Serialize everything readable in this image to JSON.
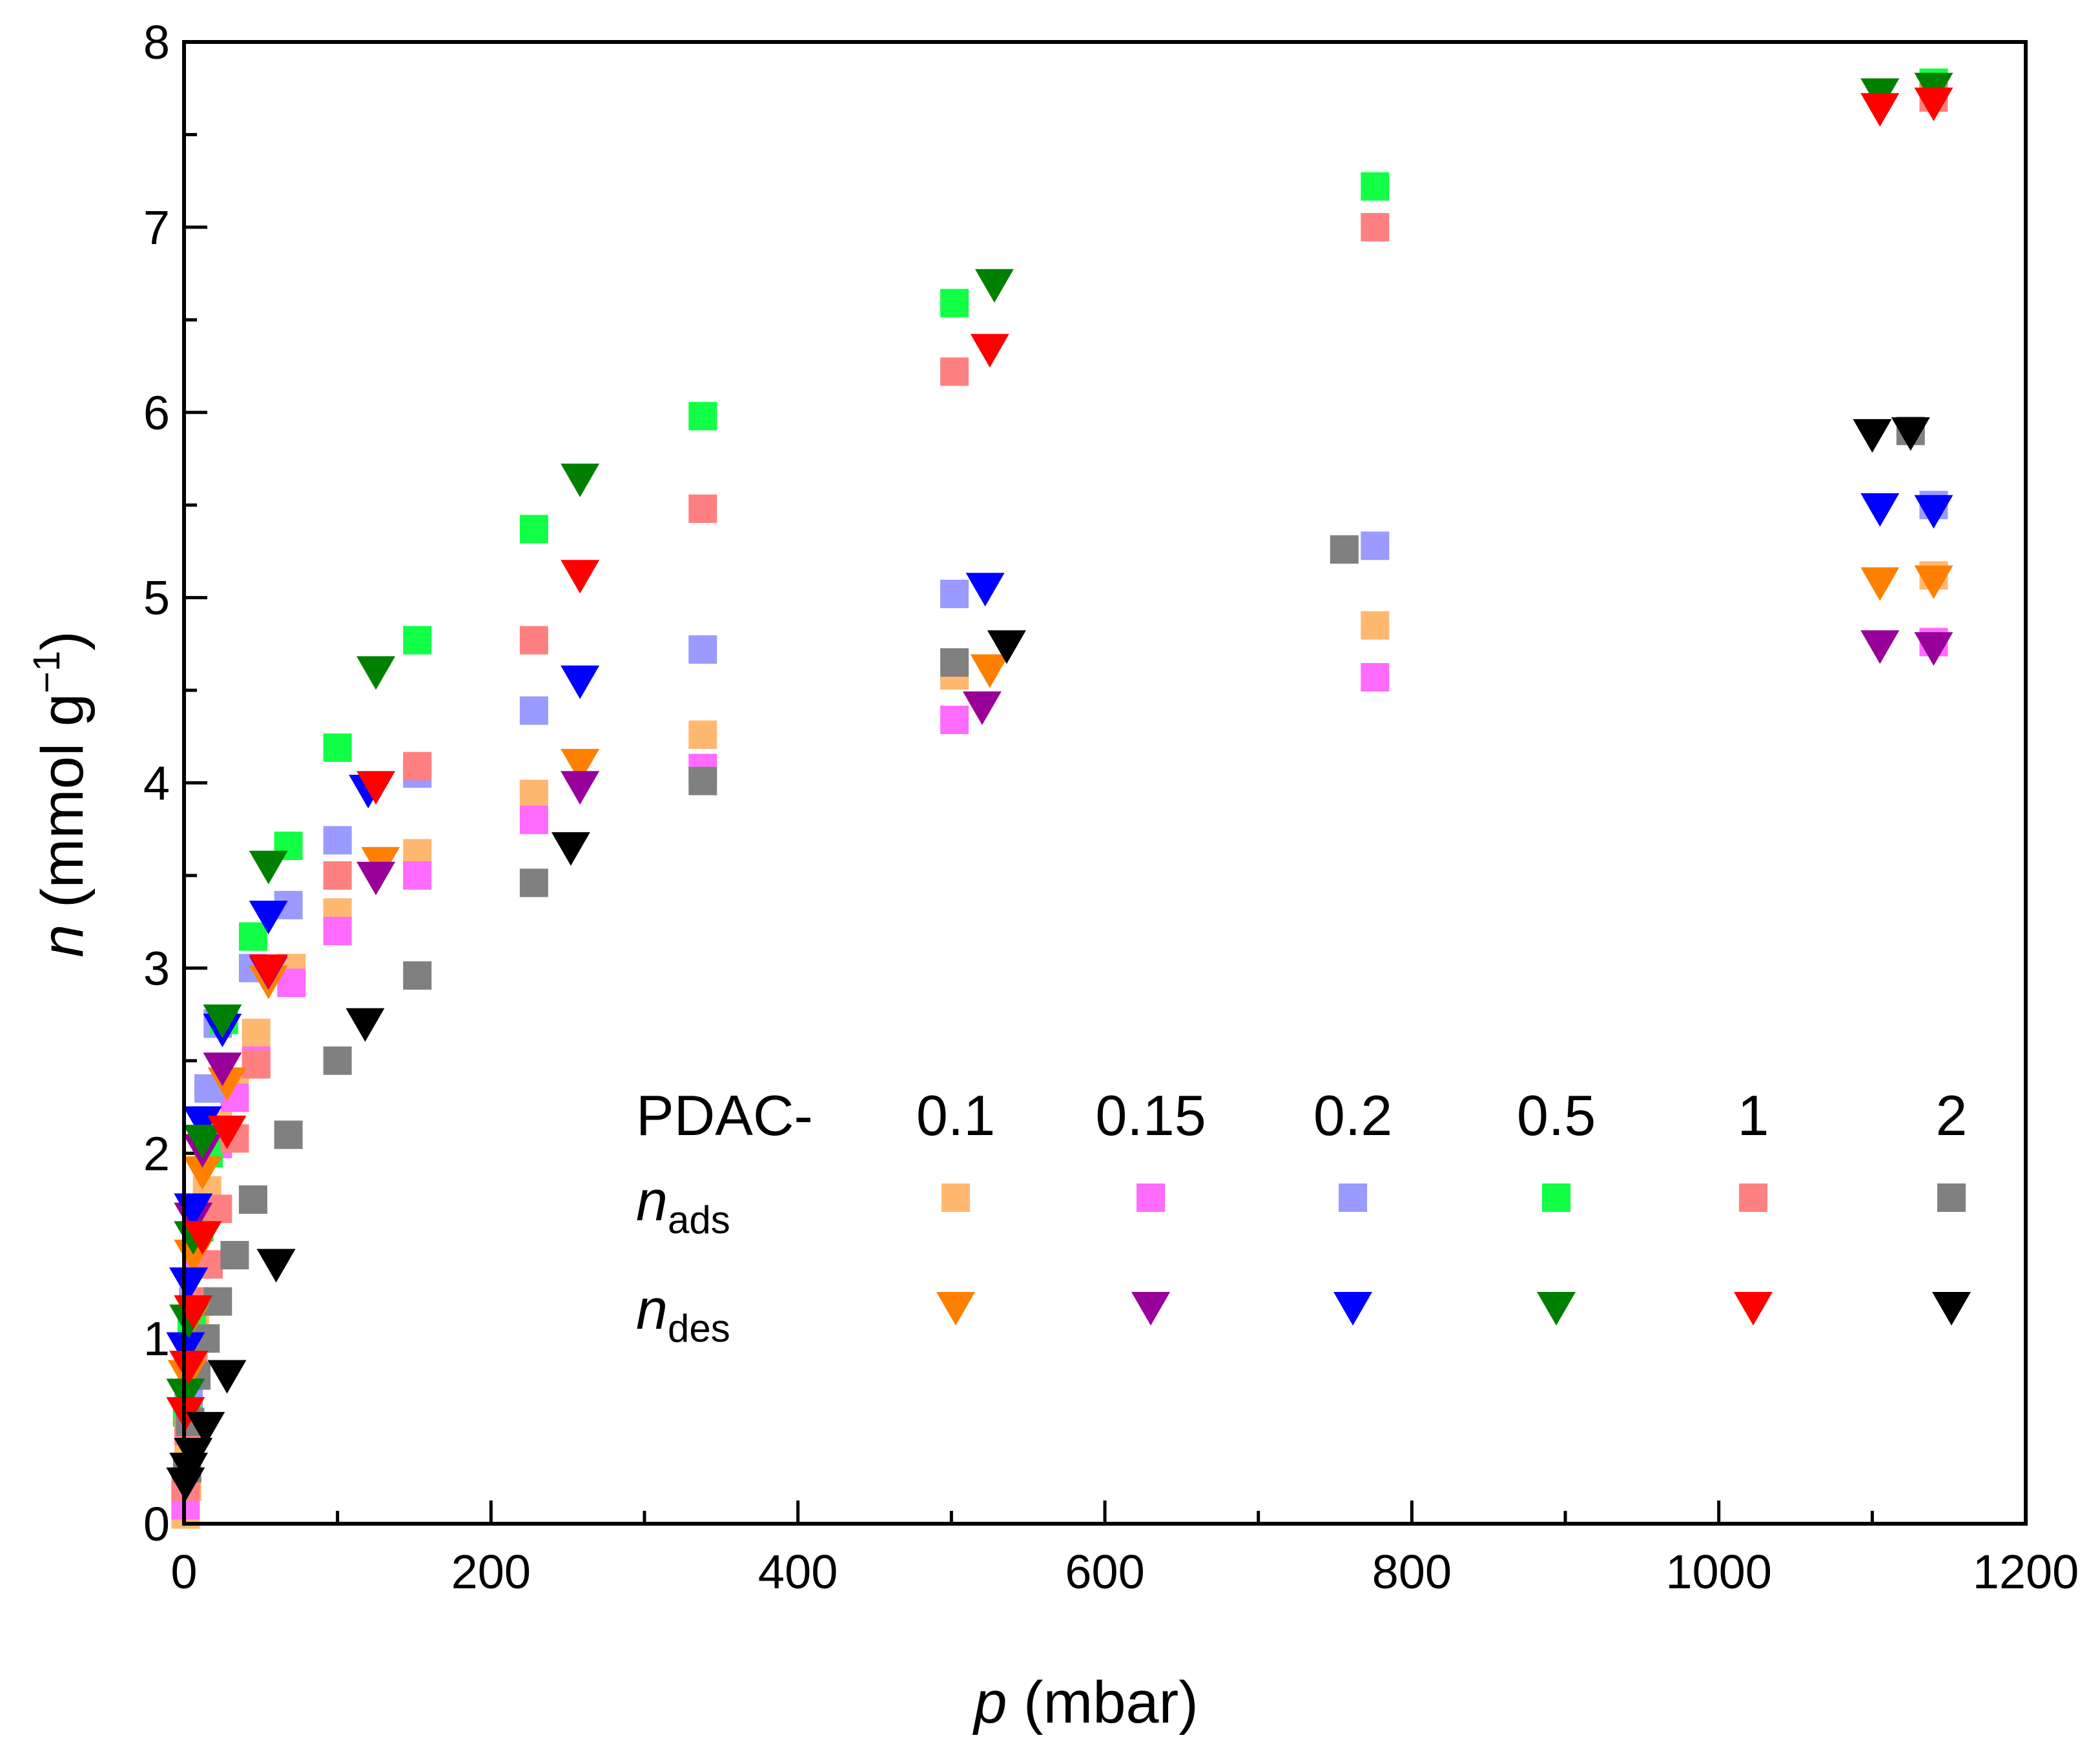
{
  "chart_data": {
    "type": "scatter",
    "x_axis": {
      "label_italic": "p",
      "label_rest": " (mbar)",
      "range": [
        0,
        1200
      ],
      "major_ticks": [
        0,
        200,
        400,
        600,
        800,
        1000,
        1200
      ],
      "tick_labels": [
        "0",
        "200",
        "400",
        "600",
        "800",
        "1000",
        "1200"
      ],
      "minor_ticks": [
        100,
        300,
        500,
        700,
        900,
        1100
      ]
    },
    "y_axis": {
      "label_italic": "n",
      "label_rest": " (mmol g",
      "label_sup": "−1",
      "label_close": ")",
      "range": [
        0,
        8
      ],
      "major_ticks": [
        0,
        1,
        2,
        3,
        4,
        5,
        6,
        7,
        8
      ],
      "tick_labels": [
        "0",
        "1",
        "2",
        "3",
        "4",
        "5",
        "6",
        "7",
        "8"
      ],
      "minor_ticks": [
        0.5,
        1.5,
        2.5,
        3.5,
        4.5,
        5.5,
        6.5,
        7.5
      ]
    },
    "legend": {
      "prefix": "PDAC-",
      "row_ads": {
        "main": "n",
        "sub": "ads"
      },
      "row_des": {
        "main": "n",
        "sub": "des"
      },
      "placement": "bottom-right"
    },
    "series": [
      {
        "name": "0.1",
        "ads_color": "#ffb870",
        "des_color": "#ff8000",
        "ads": [
          [
            1,
            0.05
          ],
          [
            2,
            0.2
          ],
          [
            3,
            0.4
          ],
          [
            5,
            0.8
          ],
          [
            7,
            1.1
          ],
          [
            10,
            1.4
          ],
          [
            15,
            1.8
          ],
          [
            22,
            2.15
          ],
          [
            33,
            2.35
          ],
          [
            47,
            2.65
          ],
          [
            70,
            3.0
          ],
          [
            100,
            3.3
          ],
          [
            152,
            3.62
          ],
          [
            228,
            3.94
          ],
          [
            338,
            4.26
          ],
          [
            502,
            4.58
          ],
          [
            776,
            4.85
          ],
          [
            1140,
            5.12
          ]
        ],
        "des": [
          [
            1140,
            5.09
          ],
          [
            1105,
            5.08
          ],
          [
            525,
            4.61
          ],
          [
            258,
            4.1
          ],
          [
            128,
            3.57
          ],
          [
            55,
            2.93
          ],
          [
            28,
            2.38
          ],
          [
            12,
            1.9
          ],
          [
            6,
            1.45
          ],
          [
            4,
            1.1
          ],
          [
            2,
            0.8
          ]
        ]
      },
      {
        "name": "0.15",
        "ads_color": "#ff6aff",
        "des_color": "#990099",
        "ads": [
          [
            1,
            0.1
          ],
          [
            3,
            0.5
          ],
          [
            6,
            0.9
          ],
          [
            10,
            1.4
          ],
          [
            16,
            1.7
          ],
          [
            22,
            2.05
          ],
          [
            33,
            2.3
          ],
          [
            47,
            2.5
          ],
          [
            70,
            2.92
          ],
          [
            100,
            3.2
          ],
          [
            152,
            3.5
          ],
          [
            228,
            3.8
          ],
          [
            338,
            4.08
          ],
          [
            502,
            4.34
          ],
          [
            776,
            4.57
          ],
          [
            1140,
            4.76
          ]
        ],
        "des": [
          [
            1140,
            4.73
          ],
          [
            1105,
            4.74
          ],
          [
            520,
            4.41
          ],
          [
            258,
            3.98
          ],
          [
            125,
            3.49
          ],
          [
            55,
            2.98
          ],
          [
            25,
            2.46
          ],
          [
            12,
            2.02
          ],
          [
            6,
            1.65
          ],
          [
            3,
            1.3
          ]
        ]
      },
      {
        "name": "0.2",
        "ads_color": "#9a9aff",
        "des_color": "#0000ff",
        "ads": [
          [
            1,
            0.2
          ],
          [
            3,
            0.7
          ],
          [
            6,
            1.2
          ],
          [
            10,
            1.7
          ],
          [
            16,
            2.35
          ],
          [
            22,
            2.7
          ],
          [
            45,
            3.0
          ],
          [
            68,
            3.34
          ],
          [
            100,
            3.69
          ],
          [
            152,
            4.05
          ],
          [
            228,
            4.39
          ],
          [
            338,
            4.72
          ],
          [
            502,
            5.02
          ],
          [
            776,
            5.28
          ],
          [
            1140,
            5.5
          ]
        ],
        "des": [
          [
            1140,
            5.47
          ],
          [
            1105,
            5.48
          ],
          [
            522,
            5.05
          ],
          [
            258,
            4.55
          ],
          [
            120,
            3.96
          ],
          [
            55,
            3.28
          ],
          [
            25,
            2.67
          ],
          [
            12,
            2.17
          ],
          [
            6,
            1.7
          ],
          [
            3,
            1.3
          ],
          [
            1,
            0.95
          ]
        ]
      },
      {
        "name": "0.5",
        "ads_color": "#11ff44",
        "des_color": "#008000",
        "ads": [
          [
            2,
            0.6
          ],
          [
            5,
            1.1
          ],
          [
            10,
            1.6
          ],
          [
            16,
            2.0
          ],
          [
            26,
            2.72
          ],
          [
            45,
            3.17
          ],
          [
            68,
            3.66
          ],
          [
            100,
            4.19
          ],
          [
            152,
            4.77
          ],
          [
            228,
            5.37
          ],
          [
            338,
            5.98
          ],
          [
            502,
            6.59
          ],
          [
            776,
            7.22
          ],
          [
            1140,
            7.78
          ]
        ],
        "des": [
          [
            1140,
            7.75
          ],
          [
            1105,
            7.72
          ],
          [
            528,
            6.69
          ],
          [
            258,
            5.64
          ],
          [
            125,
            4.6
          ],
          [
            55,
            3.55
          ],
          [
            25,
            2.72
          ],
          [
            12,
            2.07
          ],
          [
            6,
            1.55
          ],
          [
            3,
            1.1
          ],
          [
            1,
            0.7
          ]
        ]
      },
      {
        "name": "1",
        "ads_color": "#ff8080",
        "des_color": "#ff0000",
        "ads": [
          [
            1,
            0.2
          ],
          [
            3,
            0.5
          ],
          [
            6,
            0.9
          ],
          [
            10,
            1.2
          ],
          [
            16,
            1.4
          ],
          [
            22,
            1.7
          ],
          [
            33,
            2.08
          ],
          [
            47,
            2.48
          ],
          [
            100,
            3.5
          ],
          [
            152,
            4.09
          ],
          [
            228,
            4.77
          ],
          [
            338,
            5.48
          ],
          [
            502,
            6.22
          ],
          [
            776,
            7.0
          ],
          [
            1140,
            7.7
          ]
        ],
        "des": [
          [
            1140,
            7.67
          ],
          [
            1105,
            7.64
          ],
          [
            525,
            6.34
          ],
          [
            258,
            5.12
          ],
          [
            125,
            3.98
          ],
          [
            55,
            2.99
          ],
          [
            28,
            2.12
          ],
          [
            12,
            1.55
          ],
          [
            6,
            1.15
          ],
          [
            3,
            0.85
          ],
          [
            1,
            0.6
          ]
        ]
      },
      {
        "name": "2",
        "ads_color": "#808080",
        "des_color": "#000000",
        "ads": [
          [
            2,
            0.3
          ],
          [
            4,
            0.55
          ],
          [
            8,
            0.8
          ],
          [
            14,
            1.0
          ],
          [
            22,
            1.2
          ],
          [
            33,
            1.45
          ],
          [
            45,
            1.75
          ],
          [
            68,
            2.1
          ],
          [
            100,
            2.5
          ],
          [
            152,
            2.96
          ],
          [
            228,
            3.46
          ],
          [
            338,
            4.01
          ],
          [
            502,
            4.65
          ],
          [
            756,
            5.26
          ],
          [
            1125,
            5.9
          ]
        ],
        "des": [
          [
            1125,
            5.89
          ],
          [
            1100,
            5.88
          ],
          [
            536,
            4.74
          ],
          [
            252,
            3.65
          ],
          [
            118,
            2.7
          ],
          [
            60,
            1.4
          ],
          [
            28,
            0.8
          ],
          [
            14,
            0.52
          ],
          [
            6,
            0.38
          ],
          [
            3,
            0.3
          ],
          [
            1,
            0.22
          ]
        ]
      }
    ]
  }
}
